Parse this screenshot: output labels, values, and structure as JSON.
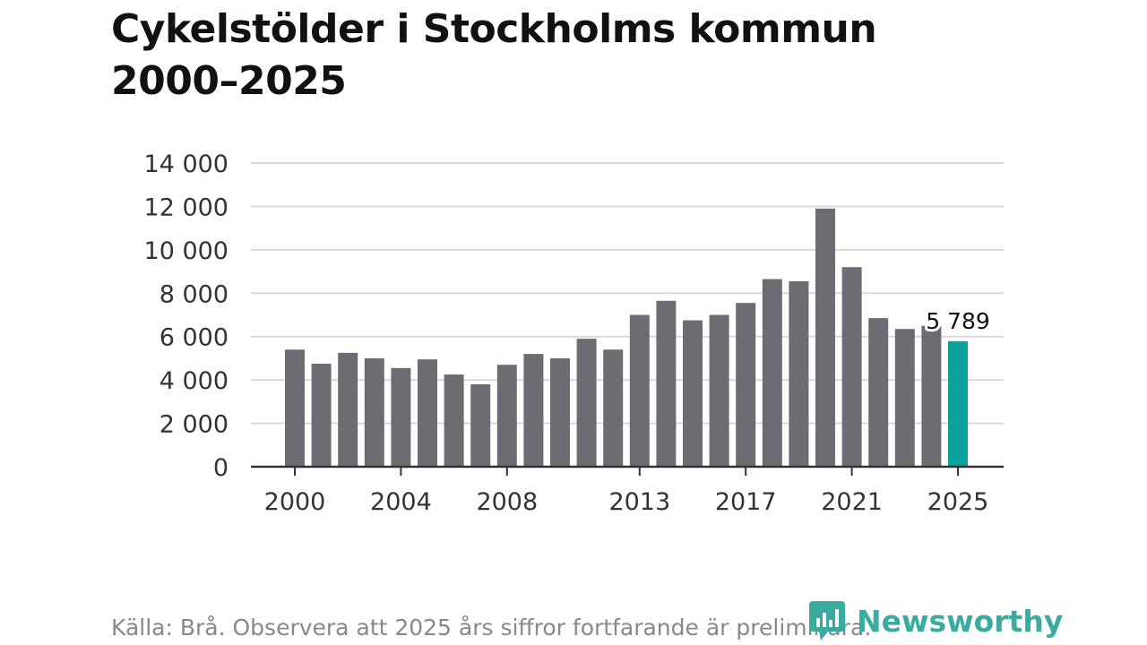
{
  "title": {
    "line1": "Cykelstölder i Stockholms kommun",
    "line2": "2000–2025"
  },
  "source": "Källa: Brå. Observera att 2025 års siffror fortfarande är preliminära.",
  "brand": "Newsworthy",
  "colors": {
    "bar": "#6d6c72",
    "highlight": "#0aa29b",
    "grid": "#d9d9d9",
    "axis": "#333333",
    "brand": "#3aab9f"
  },
  "chart_data": {
    "type": "bar",
    "title": "Cykelstölder i Stockholms kommun 2000–2025",
    "xlabel": "",
    "ylabel": "",
    "ylim": [
      0,
      14000
    ],
    "yticks": [
      0,
      2000,
      4000,
      6000,
      8000,
      10000,
      12000,
      14000
    ],
    "ytick_labels": [
      "0",
      "2 000",
      "4 000",
      "6 000",
      "8 000",
      "10 000",
      "12 000",
      "14 000"
    ],
    "xtick_labels": [
      "2000",
      "2004",
      "2008",
      "2013",
      "2017",
      "2021",
      "2025"
    ],
    "categories": [
      "2000",
      "2001",
      "2002",
      "2003",
      "2004",
      "2005",
      "2006",
      "2007",
      "2008",
      "2009",
      "2010",
      "2011",
      "2012",
      "2013",
      "2014",
      "2015",
      "2016",
      "2017",
      "2018",
      "2019",
      "2020",
      "2021",
      "2022",
      "2023",
      "2024",
      "2025"
    ],
    "values": [
      5400,
      4750,
      5250,
      5000,
      4550,
      4950,
      4250,
      3800,
      4700,
      5200,
      5000,
      5900,
      5400,
      7000,
      7650,
      6750,
      7000,
      7550,
      8650,
      8550,
      11900,
      9200,
      6850,
      6350,
      6500,
      5789
    ],
    "highlight_category": "2025",
    "annotation": {
      "category": "2025",
      "text": "5 789"
    },
    "grid": true
  }
}
